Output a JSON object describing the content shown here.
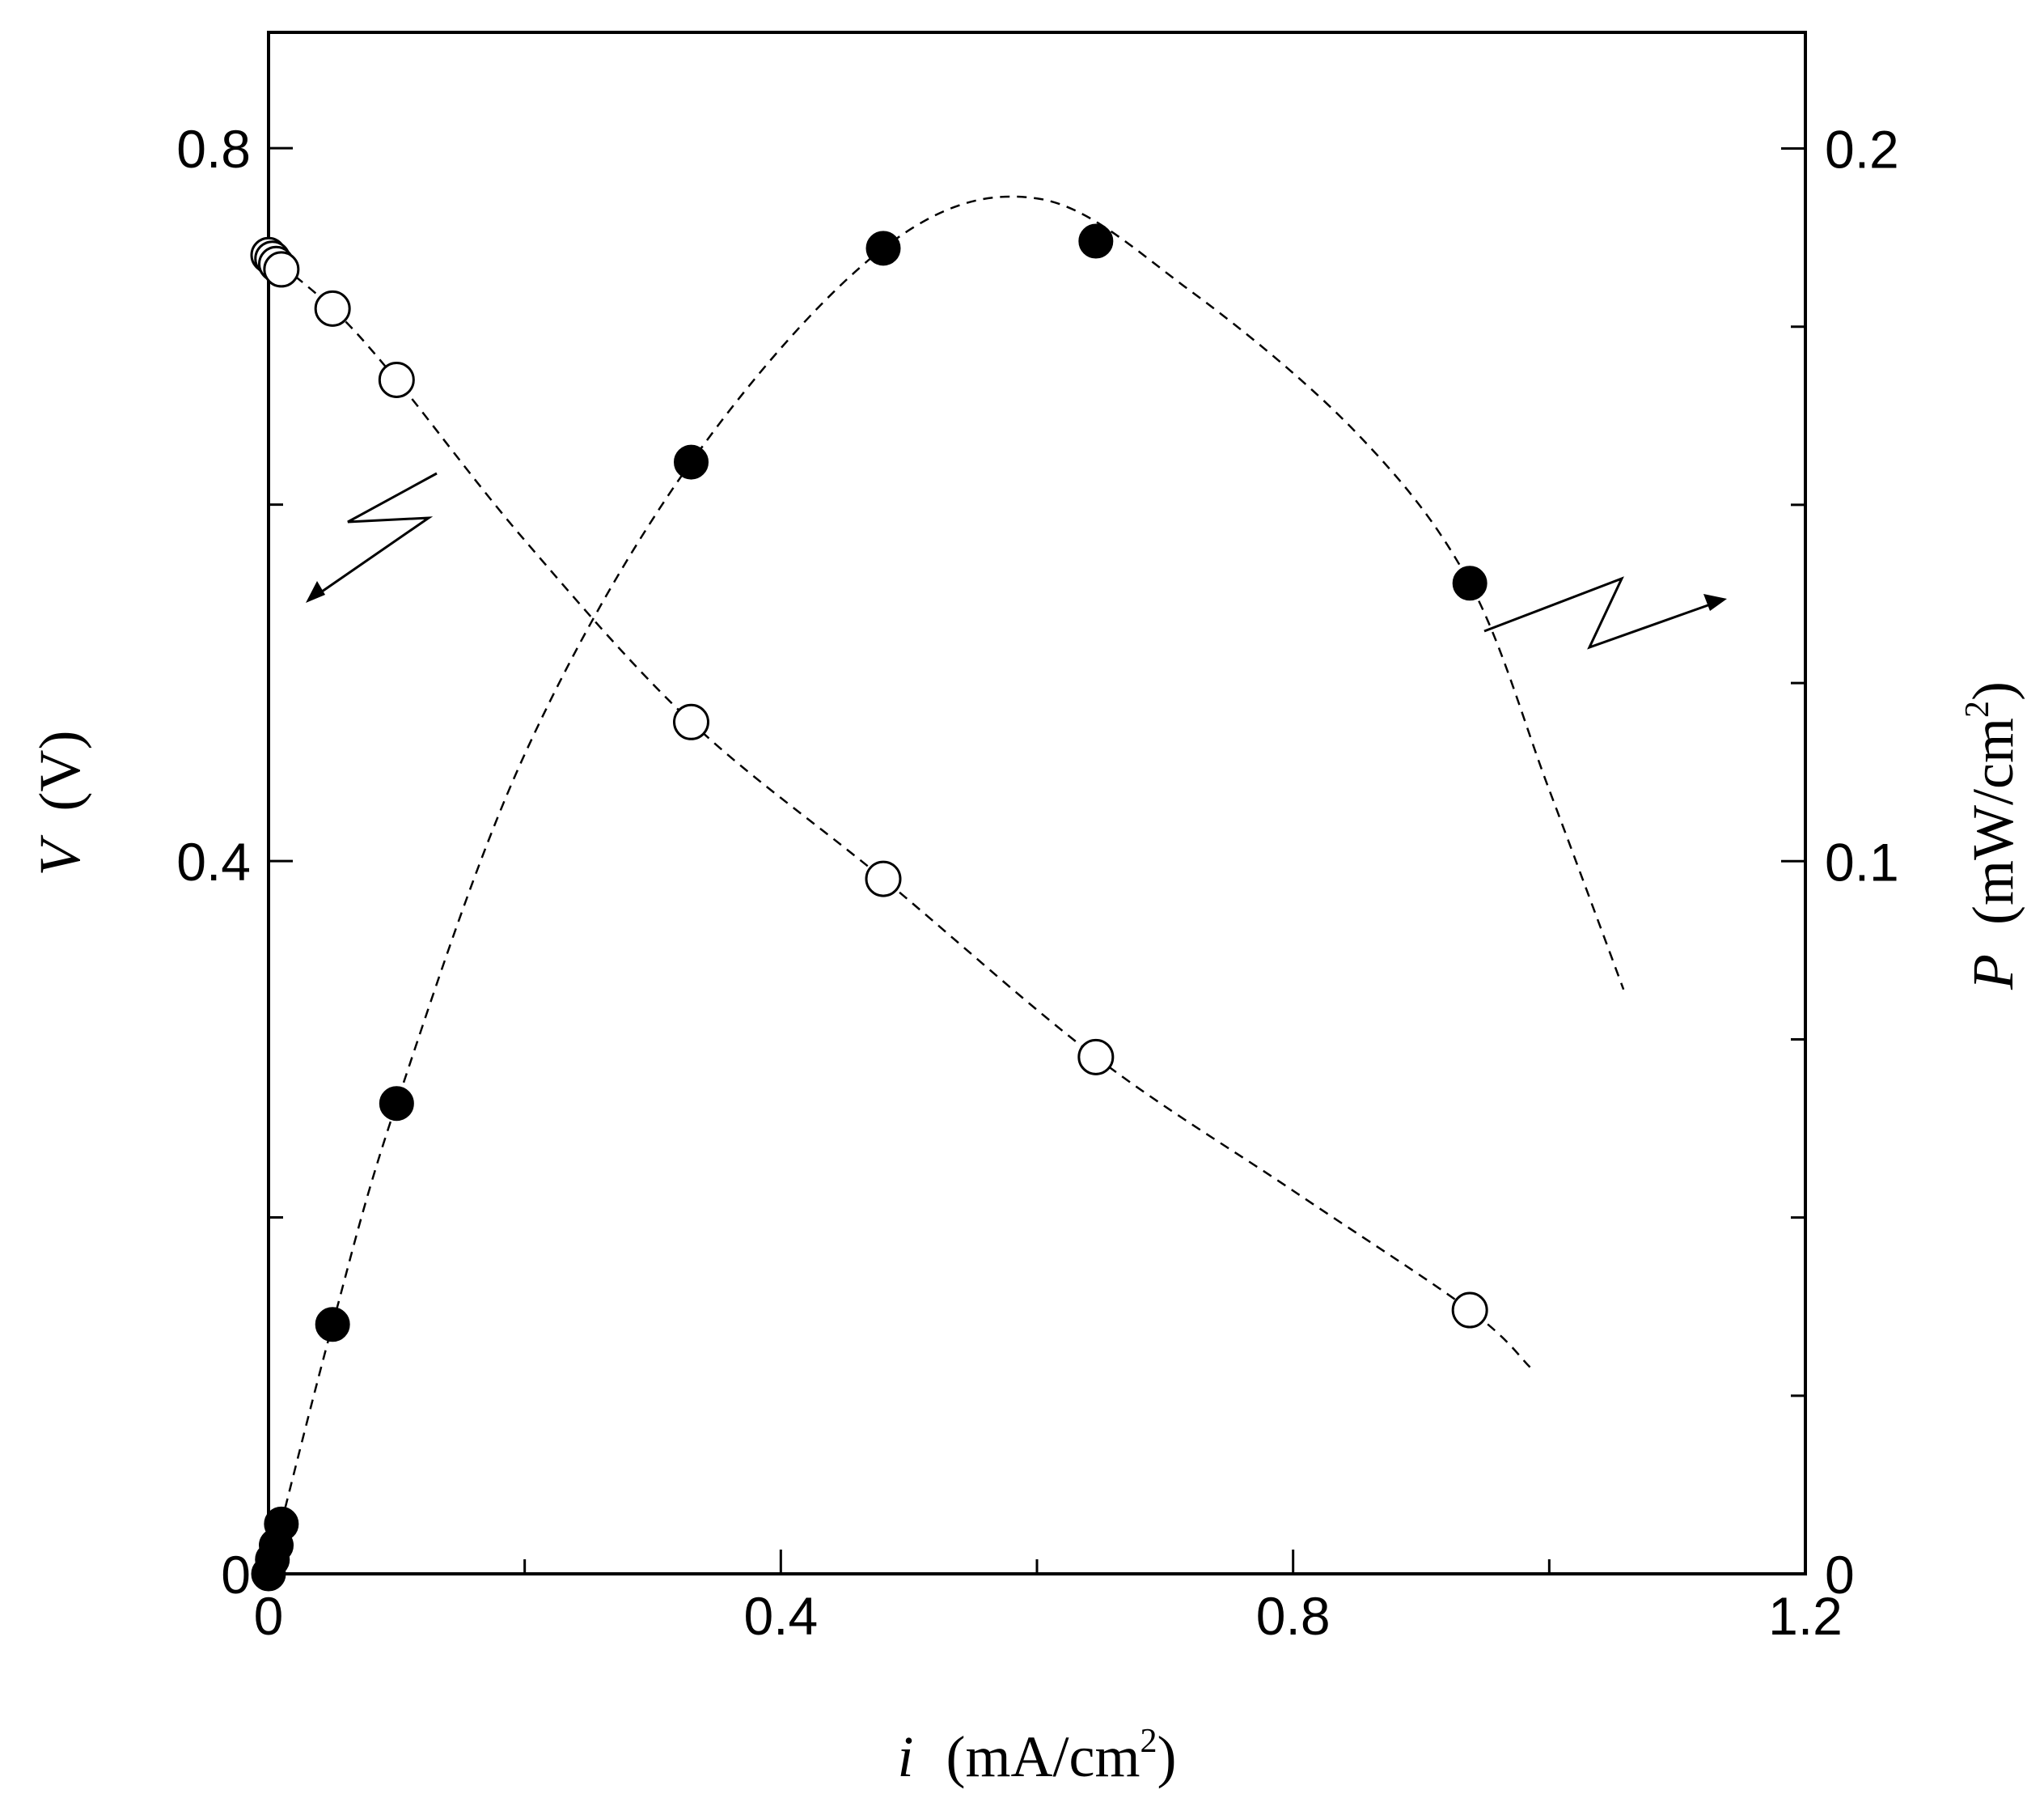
{
  "chart_data": {
    "type": "scatter",
    "title": "",
    "x_axis": {
      "label_var": "i",
      "label_unit": "(mA/cm",
      "label_sup": "2",
      "label_close": ")",
      "range": [
        0,
        1.2
      ],
      "ticks": [
        "0",
        "0.4",
        "0.8",
        "1.2"
      ],
      "tick_values": [
        0,
        0.4,
        0.8,
        1.2
      ],
      "minor_step": 0.2
    },
    "y_left": {
      "label_var": "V",
      "label_unit": "(V)",
      "range": [
        0,
        0.8
      ],
      "view_max": 0.865,
      "ticks": [
        "0",
        "0.4",
        "0.8"
      ],
      "tick_values": [
        0,
        0.4,
        0.8
      ],
      "minor_step": 0.2
    },
    "y_right": {
      "label_var": "P",
      "label_unit": "(mW/cm",
      "label_sup": "2",
      "label_close": ")",
      "range": [
        0,
        0.2
      ],
      "view_max": 0.2163,
      "ticks": [
        "0",
        "0.1",
        "0.2"
      ],
      "tick_values": [
        0,
        0.1,
        0.2
      ],
      "minor_step": 0.025
    },
    "grid": false,
    "legend": "none",
    "series": [
      {
        "marker": "open-circle",
        "axis": "left",
        "x": [
          0.0,
          0.003,
          0.006,
          0.01,
          0.05,
          0.1,
          0.33,
          0.48,
          0.646,
          0.938
        ],
        "y": [
          0.74,
          0.738,
          0.735,
          0.732,
          0.71,
          0.67,
          0.478,
          0.39,
          0.29,
          0.148
        ],
        "fit_curve": [
          [
            0.0,
            0.74
          ],
          [
            0.05,
            0.71
          ],
          [
            0.1,
            0.67
          ],
          [
            0.2,
            0.58
          ],
          [
            0.33,
            0.478
          ],
          [
            0.48,
            0.39
          ],
          [
            0.646,
            0.29
          ],
          [
            0.8,
            0.215
          ],
          [
            0.938,
            0.148
          ],
          [
            0.985,
            0.116
          ]
        ]
      },
      {
        "marker": "filled-circle",
        "axis": "right",
        "x": [
          0.0,
          0.003,
          0.006,
          0.01,
          0.05,
          0.1,
          0.33,
          0.48,
          0.646,
          0.938
        ],
        "y": [
          0.0,
          0.002,
          0.004,
          0.007,
          0.035,
          0.066,
          0.156,
          0.186,
          0.187,
          0.139
        ],
        "fit_curve": [
          [
            0.0,
            0.0
          ],
          [
            0.05,
            0.035
          ],
          [
            0.1,
            0.066
          ],
          [
            0.2,
            0.115
          ],
          [
            0.33,
            0.156
          ],
          [
            0.48,
            0.186
          ],
          [
            0.6,
            0.193
          ],
          [
            0.72,
            0.18
          ],
          [
            0.85,
            0.16
          ],
          [
            0.938,
            0.139
          ],
          [
            1.0,
            0.11
          ],
          [
            1.058,
            0.082
          ]
        ]
      }
    ],
    "annotations": [
      {
        "kind": "lightning-arrow",
        "points_to": "left-axis"
      },
      {
        "kind": "lightning-arrow",
        "points_to": "right-axis"
      }
    ]
  }
}
